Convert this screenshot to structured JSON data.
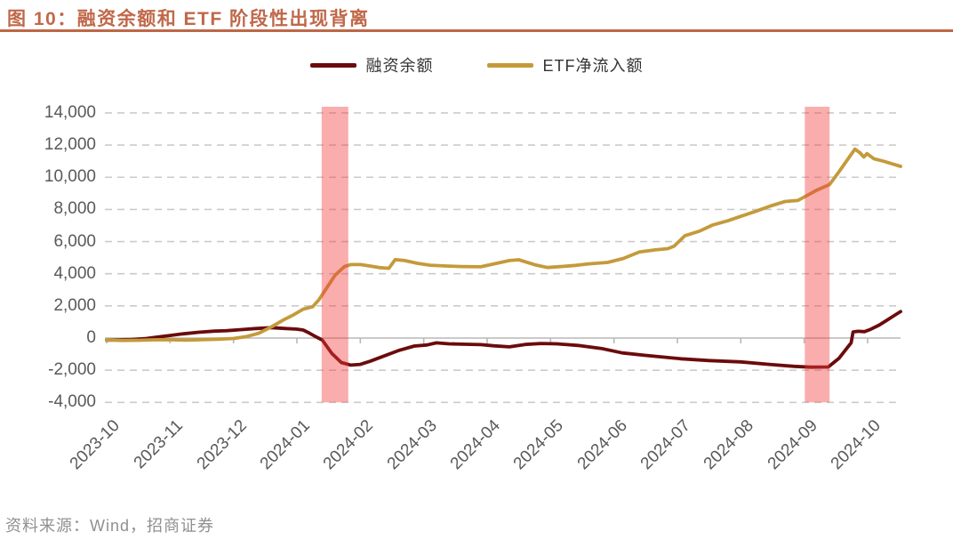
{
  "title": "图 10：融资余额和 ETF 阶段性出现背离",
  "source": "资料来源：Wind，招商证券",
  "colors": {
    "accent": "#C0684A",
    "margin_balance_line": "#6B0B0C",
    "etf_net_inflow_line": "#C49A3B",
    "highlight_band": "#F43C3C",
    "highlight_band_opacity": 0.42,
    "gridline": "#CBCBCB",
    "zero_axis": "#B8B8B8",
    "axis_text": "#595959",
    "legend_text": "#333333",
    "source_text": "#909090"
  },
  "legend": [
    {
      "label": "融资余额",
      "color": "#6B0B0C"
    },
    {
      "label": "ETF净流入额",
      "color": "#C49A3B"
    }
  ],
  "chart_data": {
    "type": "line",
    "title": "融资余额和 ETF 阶段性出现背离",
    "x_unit": "months since 2023-10 (0 = 2023-10, 12 = 2024-10)",
    "x_tick_labels": [
      "2023-10",
      "2023-11",
      "2023-12",
      "2024-01",
      "2024-02",
      "2024-03",
      "2024-04",
      "2024-05",
      "2024-06",
      "2024-07",
      "2024-08",
      "2024-09",
      "2024-10"
    ],
    "y_ticks": [
      -4000,
      -2000,
      0,
      2000,
      4000,
      6000,
      8000,
      10000,
      12000,
      14000
    ],
    "ylim": [
      -4000,
      14000
    ],
    "grid": "dashed horizontal, solid line at zero",
    "legend_position": "top-center",
    "highlight_bands": [
      {
        "x_start": 3.39,
        "x_end": 3.81
      },
      {
        "x_start": 11.01,
        "x_end": 11.4
      }
    ],
    "series": [
      {
        "id": "margin-balance",
        "name": "融资余额",
        "color": "#6B0B0C",
        "points": [
          [
            0,
            -130
          ],
          [
            0.2,
            -110
          ],
          [
            0.4,
            -90
          ],
          [
            0.6,
            -40
          ],
          [
            0.8,
            60
          ],
          [
            1.0,
            160
          ],
          [
            1.2,
            260
          ],
          [
            1.45,
            360
          ],
          [
            1.7,
            430
          ],
          [
            1.9,
            460
          ],
          [
            2.1,
            520
          ],
          [
            2.35,
            590
          ],
          [
            2.6,
            650
          ],
          [
            2.8,
            600
          ],
          [
            3.0,
            555
          ],
          [
            3.1,
            500
          ],
          [
            3.2,
            300
          ],
          [
            3.3,
            80
          ],
          [
            3.4,
            -120
          ],
          [
            3.55,
            -950
          ],
          [
            3.7,
            -1520
          ],
          [
            3.85,
            -1680
          ],
          [
            4.0,
            -1640
          ],
          [
            4.15,
            -1450
          ],
          [
            4.35,
            -1150
          ],
          [
            4.6,
            -780
          ],
          [
            4.85,
            -500
          ],
          [
            5.05,
            -430
          ],
          [
            5.2,
            -300
          ],
          [
            5.4,
            -360
          ],
          [
            5.6,
            -380
          ],
          [
            5.9,
            -410
          ],
          [
            6.1,
            -480
          ],
          [
            6.35,
            -550
          ],
          [
            6.6,
            -400
          ],
          [
            6.85,
            -340
          ],
          [
            7.1,
            -360
          ],
          [
            7.43,
            -460
          ],
          [
            7.8,
            -650
          ],
          [
            8.13,
            -925
          ],
          [
            8.5,
            -1080
          ],
          [
            9.06,
            -1290
          ],
          [
            9.5,
            -1400
          ],
          [
            10.0,
            -1480
          ],
          [
            10.45,
            -1640
          ],
          [
            10.84,
            -1760
          ],
          [
            11.1,
            -1810
          ],
          [
            11.38,
            -1800
          ],
          [
            11.55,
            -1250
          ],
          [
            11.68,
            -600
          ],
          [
            11.74,
            -300
          ],
          [
            11.77,
            380
          ],
          [
            11.85,
            420
          ],
          [
            11.95,
            400
          ],
          [
            12.05,
            550
          ],
          [
            12.18,
            800
          ],
          [
            12.3,
            1100
          ],
          [
            12.42,
            1400
          ],
          [
            12.52,
            1650
          ]
        ]
      },
      {
        "id": "etf-net-inflow",
        "name": "ETF净流入额",
        "color": "#C49A3B",
        "points": [
          [
            0,
            -120
          ],
          [
            0.25,
            -150
          ],
          [
            0.5,
            -140
          ],
          [
            0.75,
            -110
          ],
          [
            1.0,
            -100
          ],
          [
            1.25,
            -130
          ],
          [
            1.5,
            -100
          ],
          [
            1.75,
            -70
          ],
          [
            2.0,
            -30
          ],
          [
            2.2,
            90
          ],
          [
            2.4,
            300
          ],
          [
            2.6,
            700
          ],
          [
            2.8,
            1150
          ],
          [
            2.95,
            1450
          ],
          [
            3.1,
            1800
          ],
          [
            3.25,
            1950
          ],
          [
            3.35,
            2400
          ],
          [
            3.45,
            3000
          ],
          [
            3.6,
            3900
          ],
          [
            3.75,
            4450
          ],
          [
            3.85,
            4570
          ],
          [
            4.0,
            4570
          ],
          [
            4.15,
            4480
          ],
          [
            4.3,
            4380
          ],
          [
            4.45,
            4340
          ],
          [
            4.55,
            4880
          ],
          [
            4.7,
            4820
          ],
          [
            4.9,
            4650
          ],
          [
            5.1,
            4530
          ],
          [
            5.35,
            4480
          ],
          [
            5.6,
            4450
          ],
          [
            5.9,
            4430
          ],
          [
            6.15,
            4650
          ],
          [
            6.35,
            4820
          ],
          [
            6.5,
            4870
          ],
          [
            6.75,
            4560
          ],
          [
            6.95,
            4390
          ],
          [
            7.15,
            4440
          ],
          [
            7.4,
            4520
          ],
          [
            7.6,
            4615
          ],
          [
            7.9,
            4700
          ],
          [
            8.15,
            4950
          ],
          [
            8.4,
            5355
          ],
          [
            8.65,
            5480
          ],
          [
            8.85,
            5560
          ],
          [
            8.95,
            5720
          ],
          [
            9.12,
            6370
          ],
          [
            9.35,
            6650
          ],
          [
            9.55,
            7020
          ],
          [
            9.8,
            7300
          ],
          [
            10.0,
            7570
          ],
          [
            10.25,
            7900
          ],
          [
            10.47,
            8215
          ],
          [
            10.7,
            8490
          ],
          [
            10.9,
            8560
          ],
          [
            11.0,
            8770
          ],
          [
            11.2,
            9200
          ],
          [
            11.4,
            9550
          ],
          [
            11.55,
            10350
          ],
          [
            11.7,
            11200
          ],
          [
            11.8,
            11750
          ],
          [
            11.88,
            11520
          ],
          [
            11.94,
            11260
          ],
          [
            11.99,
            11470
          ],
          [
            12.1,
            11150
          ],
          [
            12.25,
            11000
          ],
          [
            12.4,
            10820
          ],
          [
            12.52,
            10680
          ]
        ]
      }
    ]
  }
}
